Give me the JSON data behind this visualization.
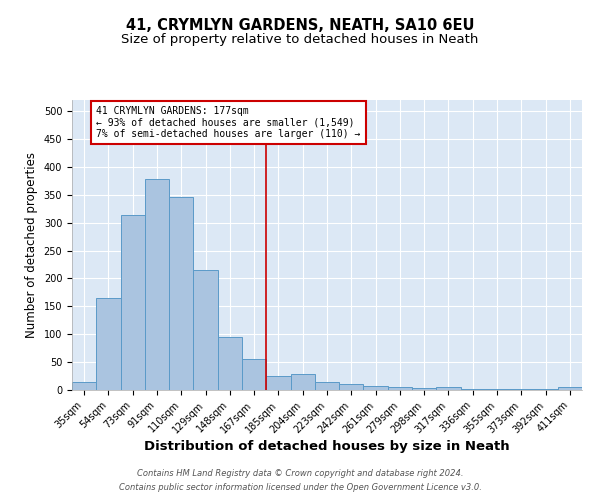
{
  "title": "41, CRYMLYN GARDENS, NEATH, SA10 6EU",
  "subtitle": "Size of property relative to detached houses in Neath",
  "xlabel": "Distribution of detached houses by size in Neath",
  "ylabel": "Number of detached properties",
  "footnote1": "Contains HM Land Registry data © Crown copyright and database right 2024.",
  "footnote2": "Contains public sector information licensed under the Open Government Licence v3.0.",
  "categories": [
    "35sqm",
    "54sqm",
    "73sqm",
    "91sqm",
    "110sqm",
    "129sqm",
    "148sqm",
    "167sqm",
    "185sqm",
    "204sqm",
    "223sqm",
    "242sqm",
    "261sqm",
    "279sqm",
    "298sqm",
    "317sqm",
    "336sqm",
    "355sqm",
    "373sqm",
    "392sqm",
    "411sqm"
  ],
  "values": [
    15,
    165,
    313,
    378,
    346,
    215,
    95,
    56,
    25,
    29,
    14,
    11,
    8,
    6,
    4,
    5,
    1,
    1,
    1,
    1,
    5
  ],
  "bar_color": "#aac4e0",
  "bar_edge_color": "#5a9ac8",
  "vline_color": "#cc0000",
  "annotation_title": "41 CRYMLYN GARDENS: 177sqm",
  "annotation_line2": "← 93% of detached houses are smaller (1,549)",
  "annotation_line3": "7% of semi-detached houses are larger (110) →",
  "annotation_box_color": "white",
  "annotation_box_edge_color": "#cc0000",
  "ylim": [
    0,
    520
  ],
  "yticks": [
    0,
    50,
    100,
    150,
    200,
    250,
    300,
    350,
    400,
    450,
    500
  ],
  "background_color": "#dce8f5",
  "grid_color": "white",
  "title_fontsize": 10.5,
  "subtitle_fontsize": 9.5,
  "xlabel_fontsize": 9.5,
  "ylabel_fontsize": 8.5,
  "tick_fontsize": 7,
  "annotation_fontsize": 7,
  "footnote_fontsize": 6
}
